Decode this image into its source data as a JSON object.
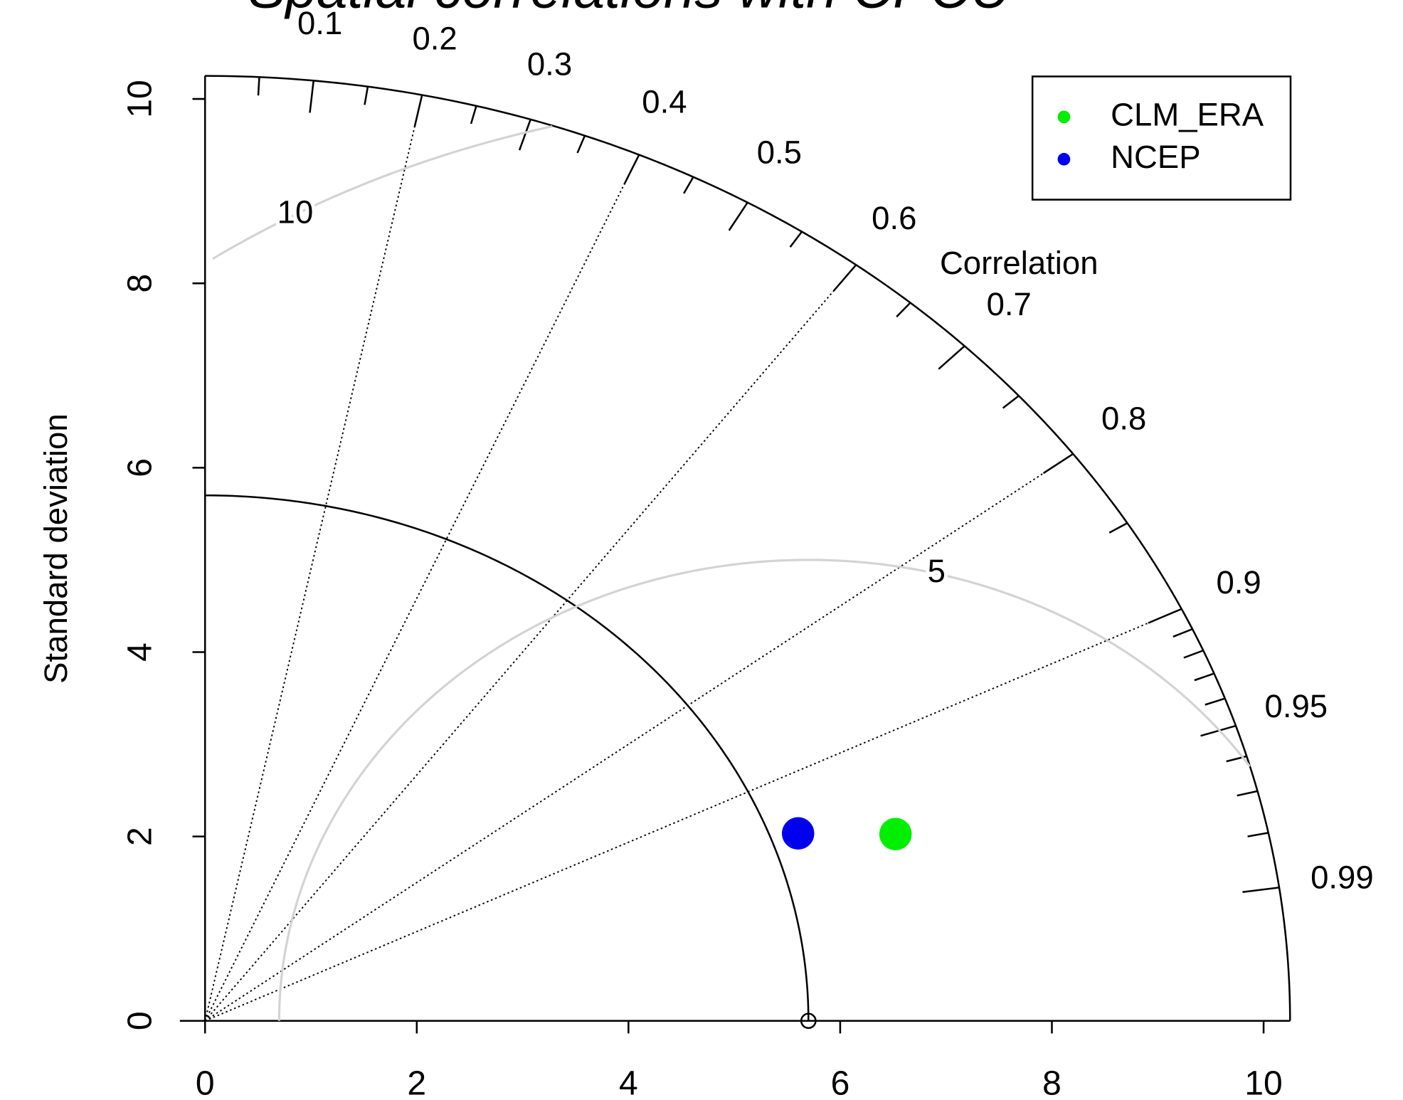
{
  "chart_data": {
    "type": "taylor",
    "title": "Spatial correlations with CPCU",
    "ylabel": "Standard deviation",
    "correlation_label": "Correlation",
    "xlim": [
      0,
      10.25
    ],
    "ylim": [
      0,
      10.25
    ],
    "xticks": [
      0,
      2,
      4,
      6,
      8,
      10
    ],
    "yticks": [
      0,
      2,
      4,
      6,
      8,
      10
    ],
    "correlation_ticks": [
      0.1,
      0.2,
      0.3,
      0.4,
      0.5,
      0.6,
      0.7,
      0.8,
      0.9,
      0.95,
      0.99
    ],
    "correlation_minor_ticks": [
      0.05,
      0.15,
      0.25,
      0.35,
      0.45,
      0.55,
      0.65,
      0.75,
      0.85,
      0.91,
      0.92,
      0.93,
      0.94,
      0.96,
      0.97,
      0.98
    ],
    "correlation_lines": [
      0.2,
      0.4,
      0.6,
      0.8,
      0.9
    ],
    "reference_sd": 5.7,
    "rms_contours": [
      5,
      10
    ],
    "series": [
      {
        "name": "CLM_ERA",
        "color": "#00ee00",
        "sd": 6.83,
        "correlation": 0.955
      },
      {
        "name": "NCEP",
        "color": "#0000ee",
        "sd": 5.96,
        "correlation": 0.94
      }
    ]
  }
}
